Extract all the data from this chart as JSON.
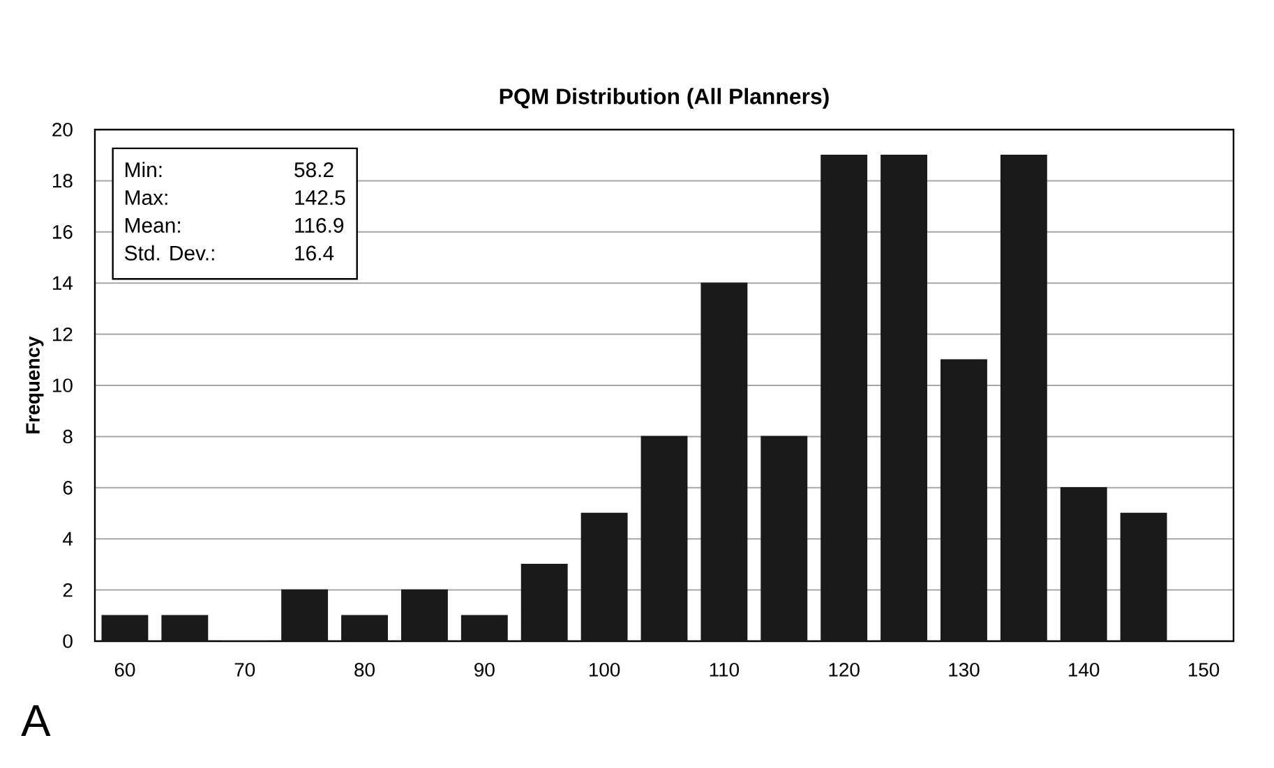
{
  "chart_data": {
    "type": "bar",
    "title": "PQM Distribution (All Planners)",
    "ylabel": "Frequency",
    "x": [
      60,
      65,
      70,
      75,
      80,
      85,
      90,
      95,
      100,
      105,
      110,
      115,
      120,
      125,
      130,
      135,
      140,
      145
    ],
    "values": [
      1,
      1,
      0,
      2,
      1,
      2,
      1,
      3,
      5,
      8,
      14,
      8,
      19,
      19,
      11,
      19,
      6,
      5
    ],
    "color": "#1a1a1a",
    "xlim": [
      57.5,
      152.5
    ],
    "ylim": [
      0,
      20
    ],
    "xticks": [
      60,
      70,
      80,
      90,
      100,
      110,
      120,
      130,
      140,
      150
    ],
    "yticks": [
      0,
      2,
      4,
      6,
      8,
      10,
      12,
      14,
      16,
      18,
      20
    ],
    "grid": "y",
    "annotations": [
      "Min:",
      "58.2",
      "Max:",
      "142.5",
      "Mean:",
      "116.9",
      "Std. Dev.:",
      "16.4",
      "A"
    ]
  }
}
